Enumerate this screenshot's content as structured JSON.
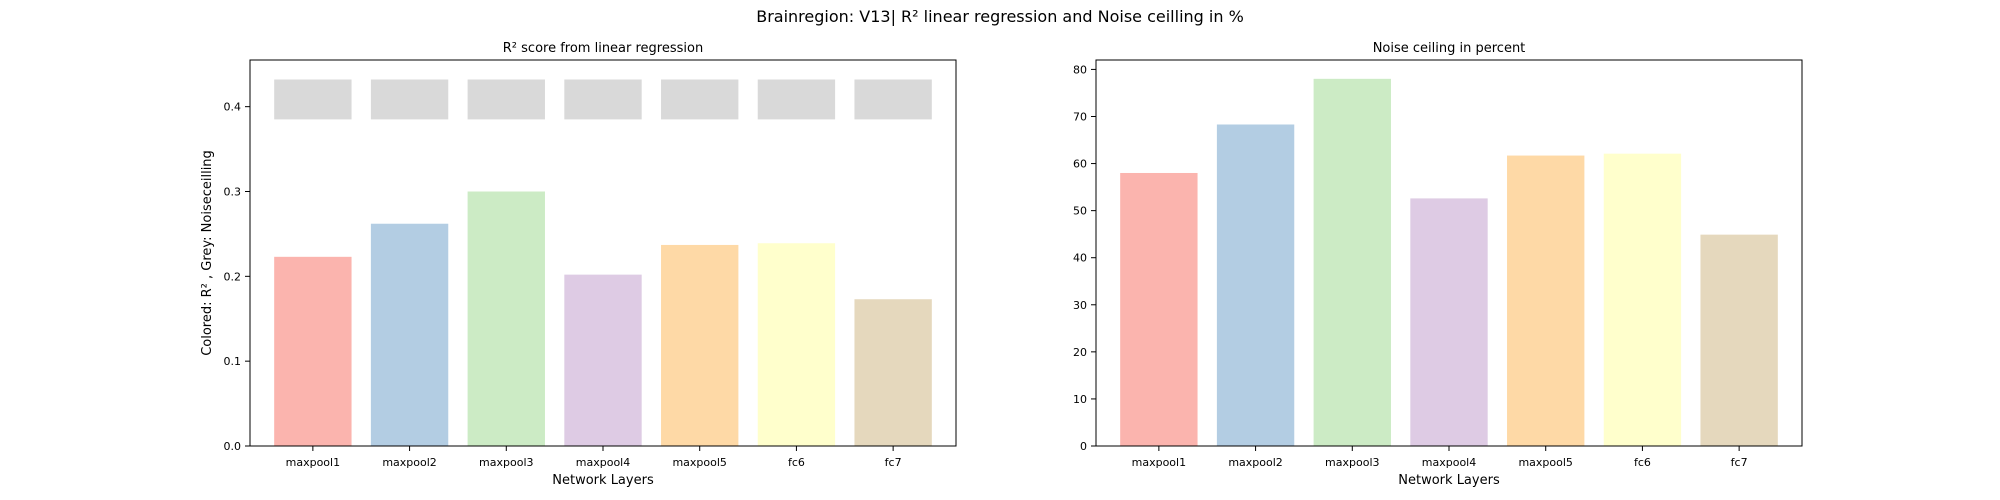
{
  "suptitle": "Brainregion: V13| R² linear regression and Noise ceilling in %",
  "colors": {
    "bars": [
      "#fbb4ae",
      "#b3cde3",
      "#ccebc5",
      "#decbe4",
      "#fed9a6",
      "#ffffcc",
      "#e5d8bd"
    ],
    "noise_ceiling": "#d9d9d9",
    "axis": "#000000"
  },
  "chart_data": [
    {
      "type": "bar",
      "title": "R² score from linear regression",
      "xlabel": "Network Layers",
      "ylabel": "Colored: R² , Grey: Noiseceilling",
      "categories": [
        "maxpool1",
        "maxpool2",
        "maxpool3",
        "maxpool4",
        "maxpool5",
        "fc6",
        "fc7"
      ],
      "series": [
        {
          "name": "R²",
          "values": [
            0.223,
            0.262,
            0.3,
            0.202,
            0.237,
            0.239,
            0.173
          ]
        },
        {
          "name": "Noiseceilling",
          "values": [
            0.432,
            0.432,
            0.432,
            0.432,
            0.432,
            0.432,
            0.432
          ],
          "bottom": 0.385
        }
      ],
      "ylim": [
        0,
        0.455
      ],
      "yticks": [
        0.0,
        0.1,
        0.2,
        0.3,
        0.4
      ],
      "ytick_labels": [
        "0.0",
        "0.1",
        "0.2",
        "0.3",
        "0.4"
      ],
      "grid": false
    },
    {
      "type": "bar",
      "title": "Noise ceiling in percent",
      "xlabel": "Network Layers",
      "ylabel": "",
      "categories": [
        "maxpool1",
        "maxpool2",
        "maxpool3",
        "maxpool4",
        "maxpool5",
        "fc6",
        "fc7"
      ],
      "series": [
        {
          "name": "Noise ceiling",
          "values": [
            58.0,
            68.3,
            78.0,
            52.6,
            61.7,
            62.1,
            44.9
          ]
        }
      ],
      "ylim": [
        0,
        82
      ],
      "yticks": [
        0,
        10,
        20,
        30,
        40,
        50,
        60,
        70,
        80
      ],
      "ytick_labels": [
        "0",
        "10",
        "20",
        "30",
        "40",
        "50",
        "60",
        "70",
        "80"
      ],
      "grid": false
    }
  ]
}
